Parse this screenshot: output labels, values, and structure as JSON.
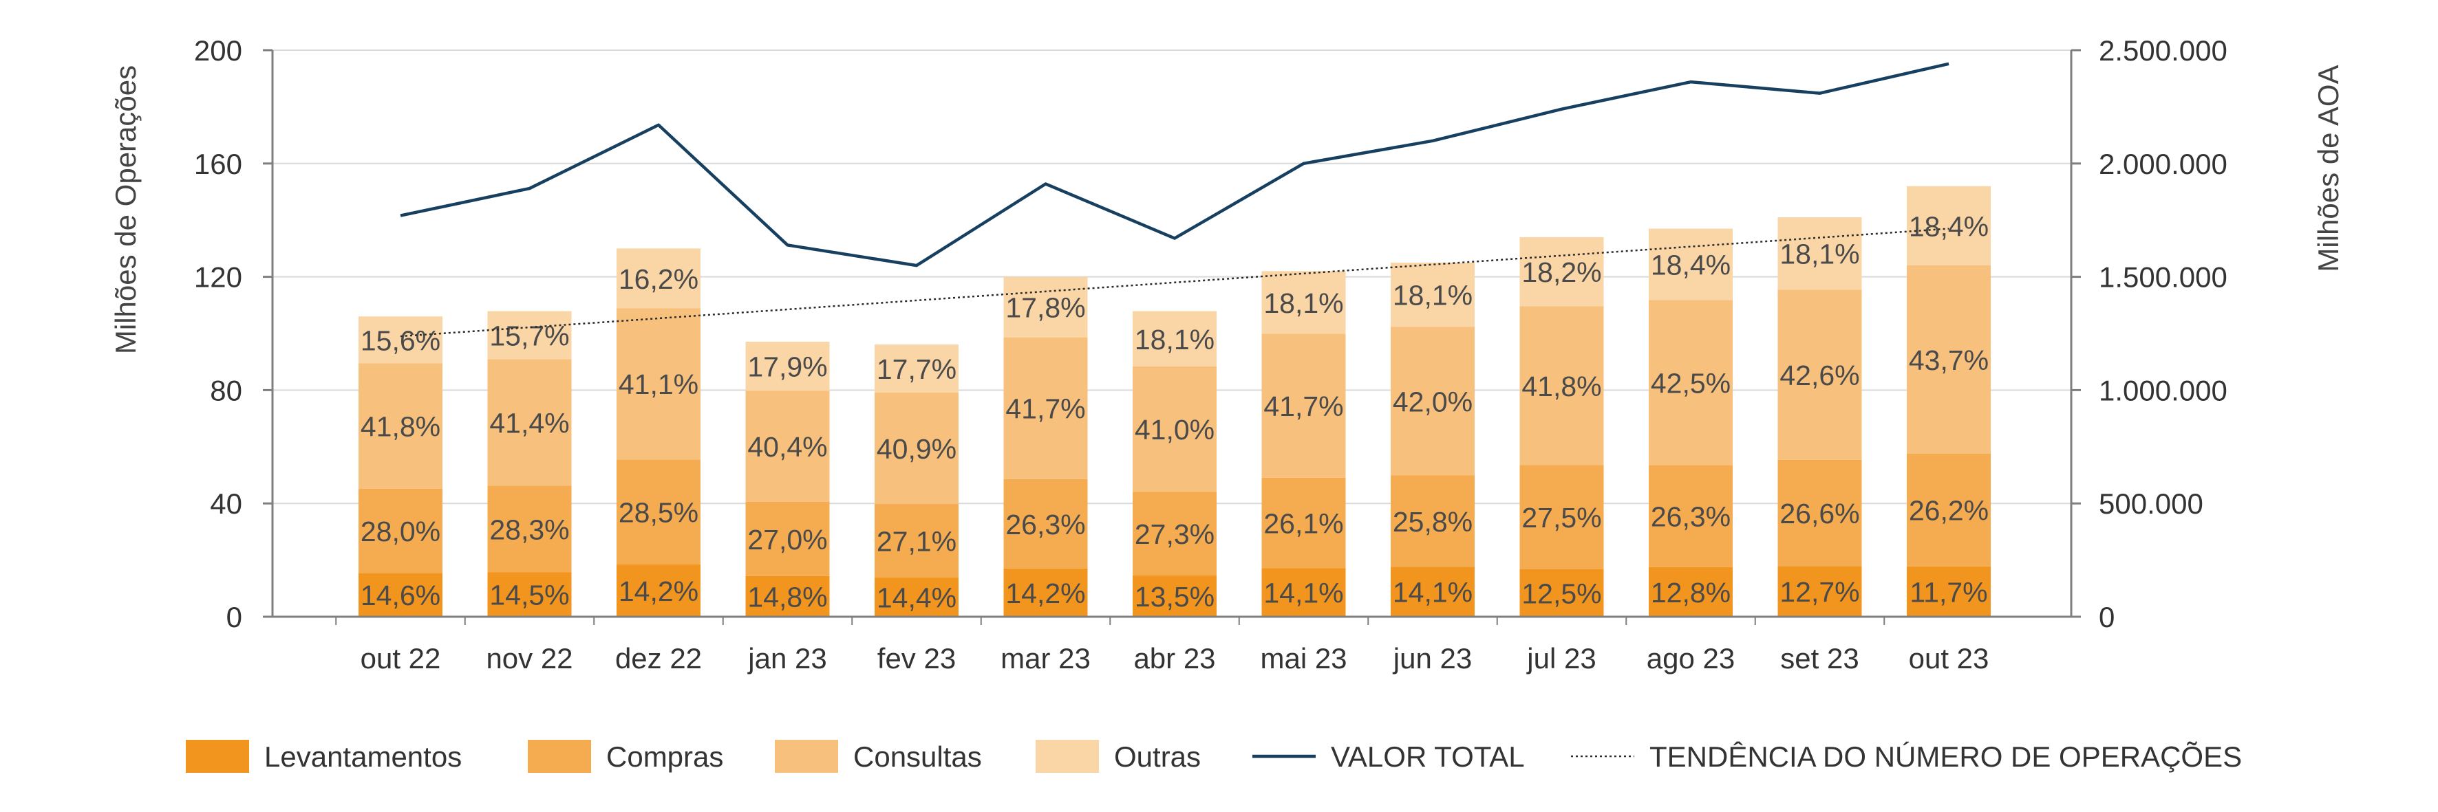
{
  "chart_data": {
    "type": "bar",
    "stacked": true,
    "categories": [
      "out 22",
      "nov 22",
      "dez 22",
      "jan 23",
      "fev 23",
      "mar 23",
      "abr 23",
      "mai 23",
      "jun 23",
      "jul 23",
      "ago 23",
      "set 23",
      "out 23"
    ],
    "totals": [
      106,
      108,
      130,
      97,
      96,
      120,
      108,
      122,
      125,
      134,
      137,
      141,
      152
    ],
    "series": [
      {
        "name": "Levantamentos",
        "color": "#F2951F",
        "percent_labels": [
          "14,6%",
          "14,5%",
          "14,2%",
          "14,8%",
          "14,4%",
          "14,2%",
          "13,5%",
          "14,1%",
          "14,1%",
          "12,5%",
          "12,8%",
          "12,7%",
          "11,7%"
        ]
      },
      {
        "name": "Compras",
        "color": "#F5AB4F",
        "percent_labels": [
          "28,0%",
          "28,3%",
          "28,5%",
          "27,0%",
          "27,1%",
          "26,3%",
          "27,3%",
          "26,1%",
          "25,8%",
          "27,5%",
          "26,3%",
          "26,6%",
          "26,2%"
        ]
      },
      {
        "name": "Consultas",
        "color": "#F7C07D",
        "percent_labels": [
          "41,8%",
          "41,4%",
          "41,1%",
          "40,4%",
          "40,9%",
          "41,7%",
          "41,0%",
          "41,7%",
          "42,0%",
          "41,8%",
          "42,5%",
          "42,6%",
          "43,7%"
        ]
      },
      {
        "name": "Outras",
        "color": "#FAD5A6",
        "percent_labels": [
          "15,6%",
          "15,7%",
          "16,2%",
          "17,9%",
          "17,7%",
          "17,8%",
          "18,1%",
          "18,1%",
          "18,1%",
          "18,2%",
          "18,4%",
          "18,1%",
          "18,4%"
        ]
      }
    ],
    "line_series": {
      "name": "VALOR TOTAL",
      "axis": "right",
      "color": "#173F5F",
      "values": [
        1770000,
        1890000,
        2170000,
        1640000,
        1550000,
        1910000,
        1670000,
        2000000,
        2100000,
        2240000,
        2360000,
        2310000,
        2440000
      ]
    },
    "trend": {
      "name": "TENDÊNCIA DO NÚMERO DE OPERAÇÕES",
      "start": 99,
      "end": 137
    },
    "ylabel": "Milhões de Operações",
    "ylabel_right": "Milhões de AOA",
    "ylim": [
      0,
      200
    ],
    "ylim_right": [
      0,
      2500000
    ],
    "yticks": [
      "0",
      "40",
      "80",
      "120",
      "160",
      "200"
    ],
    "yticks_right": [
      "0",
      "500.000",
      "1.000.000",
      "1.500.000",
      "2.000.000",
      "2.500.000"
    ],
    "grid": true,
    "legend_position": "bottom"
  }
}
